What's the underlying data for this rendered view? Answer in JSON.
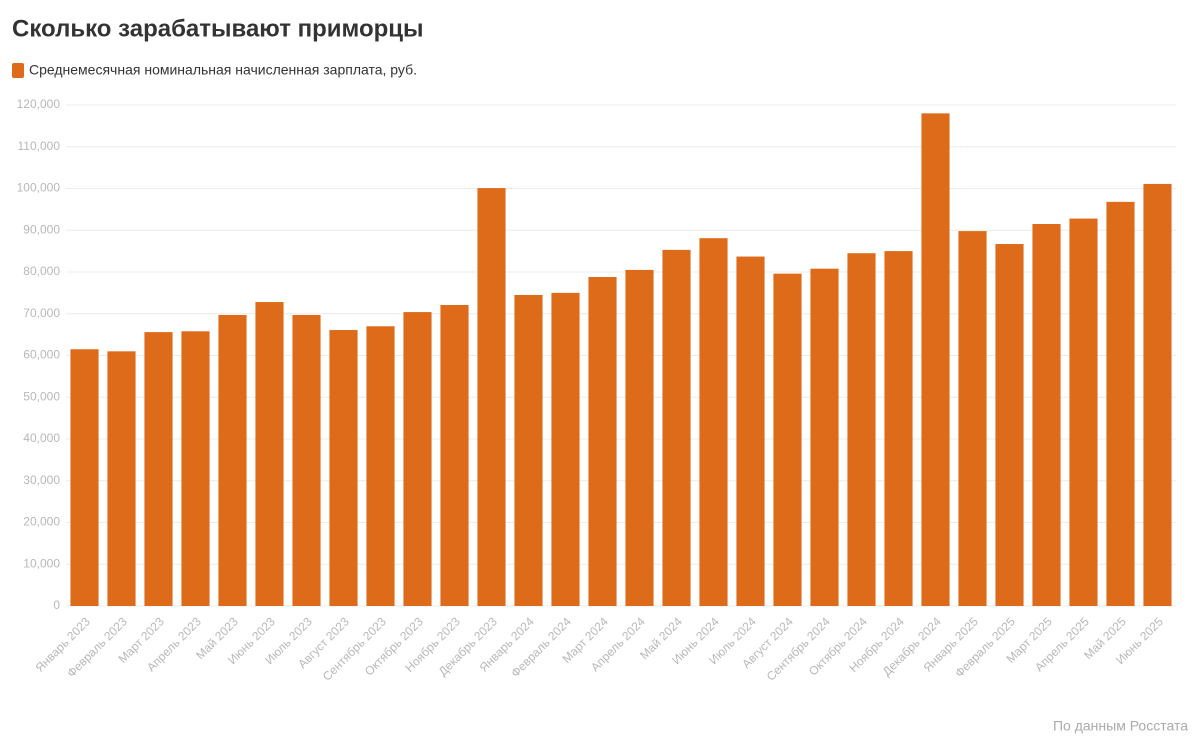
{
  "chart_data": {
    "type": "bar",
    "title": "Сколько зарабатывают приморцы",
    "source": "По данным Росстата",
    "series": [
      {
        "name": "Среднемесячная номинальная начисленная зарплата, руб.",
        "color": "#dd6b1a",
        "values": [
          61500,
          61000,
          65600,
          65800,
          69700,
          72800,
          69700,
          66100,
          67000,
          70400,
          72100,
          100100,
          74500,
          75000,
          78800,
          80500,
          85300,
          88100,
          83700,
          79600,
          80800,
          84500,
          85000,
          118000,
          89800,
          86700,
          91500,
          92800,
          96800,
          101100
        ]
      }
    ],
    "categories": [
      "Январь 2023",
      "Февраль 2023",
      "Март 2023",
      "Апрель 2023",
      "Май 2023",
      "Июнь 2023",
      "Июль 2023",
      "Август 2023",
      "Сентябрь 2023",
      "Октябрь 2023",
      "Ноябрь 2023",
      "Декабрь 2023",
      "Январь 2024",
      "Февраль 2024",
      "Март 2024",
      "Апрель 2024",
      "Май 2024",
      "Июнь 2024",
      "Июль 2024",
      "Август 2024",
      "Сентябрь 2024",
      "Октябрь 2024",
      "Ноябрь 2024",
      "Декабрь 2024",
      "Январь 2025",
      "Февраль 2025",
      "Март 2025",
      "Апрель 2025",
      "Май 2025",
      "Июнь 2025"
    ],
    "ylim": [
      0,
      120000
    ],
    "yticks": [
      0,
      {
        "value": 10000,
        "label": "10,000"
      },
      {
        "value": 20000,
        "label": "20,000"
      },
      {
        "value": 30000,
        "label": "30,000"
      },
      {
        "value": 40000,
        "label": "40,000"
      },
      {
        "value": 50000,
        "label": "50,000"
      },
      {
        "value": 60000,
        "label": "60,000"
      },
      {
        "value": 70000,
        "label": "70,000"
      },
      {
        "value": 80000,
        "label": "80,000"
      },
      {
        "value": 90000,
        "label": "90,000"
      },
      {
        "value": 100000,
        "label": "100,000"
      },
      {
        "value": 110000,
        "label": "110,000"
      },
      {
        "value": 120000,
        "label": "120,000"
      }
    ],
    "grid": true
  }
}
